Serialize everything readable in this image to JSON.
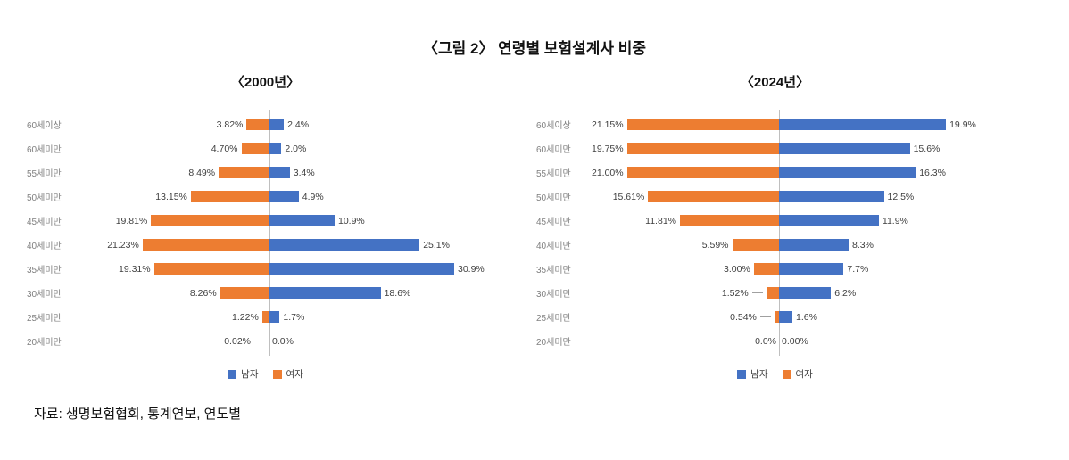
{
  "title": "〈그림 2〉 연령별 보험설계사 비중",
  "source": "자료: 생명보험협회, 통계연보, 연도별",
  "colors": {
    "male": "#4472C4",
    "female": "#ED7D31",
    "axis": "#BFBFBF"
  },
  "legend": {
    "male_label": "남자",
    "female_label": "여자"
  },
  "chart_data": [
    {
      "type": "bar",
      "subtype": "population-pyramid",
      "title": "〈2000년〉",
      "grid": false,
      "legend_position": "bottom",
      "leader_threshold": 0.5,
      "categories": [
        "60세이상",
        "60세미만",
        "55세미만",
        "50세미만",
        "45세미만",
        "40세미만",
        "35세미만",
        "30세미만",
        "25세미만",
        "20세미만"
      ],
      "series": [
        {
          "name": "남자",
          "side": "right",
          "values": [
            2.4,
            2.0,
            3.4,
            4.9,
            10.9,
            25.1,
            30.9,
            18.6,
            1.7,
            0.0
          ],
          "labels": [
            "2.4%",
            "2.0%",
            "3.4%",
            "4.9%",
            "10.9%",
            "25.1%",
            "30.9%",
            "18.6%",
            "1.7%",
            "0.0%"
          ]
        },
        {
          "name": "여자",
          "side": "left",
          "values": [
            3.82,
            4.7,
            8.49,
            13.15,
            19.81,
            21.23,
            19.31,
            8.26,
            1.22,
            0.02
          ],
          "labels": [
            "3.82%",
            "4.70%",
            "8.49%",
            "13.15%",
            "19.81%",
            "21.23%",
            "19.31%",
            "8.26%",
            "1.22%",
            "0.02%"
          ]
        }
      ]
    },
    {
      "type": "bar",
      "subtype": "population-pyramid",
      "title": "〈2024년〉",
      "grid": false,
      "legend_position": "bottom",
      "leader_threshold": 2.0,
      "categories": [
        "60세이상",
        "60세미만",
        "55세미만",
        "50세미만",
        "45세미만",
        "40세미만",
        "35세미만",
        "30세미만",
        "25세미만",
        "20세미만"
      ],
      "series": [
        {
          "name": "남자",
          "side": "right",
          "values": [
            19.9,
            15.6,
            16.3,
            12.5,
            11.9,
            8.3,
            7.7,
            6.2,
            1.6,
            0.0
          ],
          "labels": [
            "19.9%",
            "15.6%",
            "16.3%",
            "12.5%",
            "11.9%",
            "8.3%",
            "7.7%",
            "6.2%",
            "1.6%",
            "0.00%"
          ]
        },
        {
          "name": "여자",
          "side": "left",
          "values": [
            21.15,
            19.75,
            21.0,
            15.61,
            11.81,
            5.59,
            3.0,
            1.52,
            0.54,
            0.0
          ],
          "labels": [
            "21.15%",
            "19.75%",
            "21.00%",
            "15.61%",
            "11.81%",
            "5.59%",
            "3.00%",
            "1.52%",
            "0.54%",
            "0.0%"
          ]
        }
      ]
    }
  ]
}
